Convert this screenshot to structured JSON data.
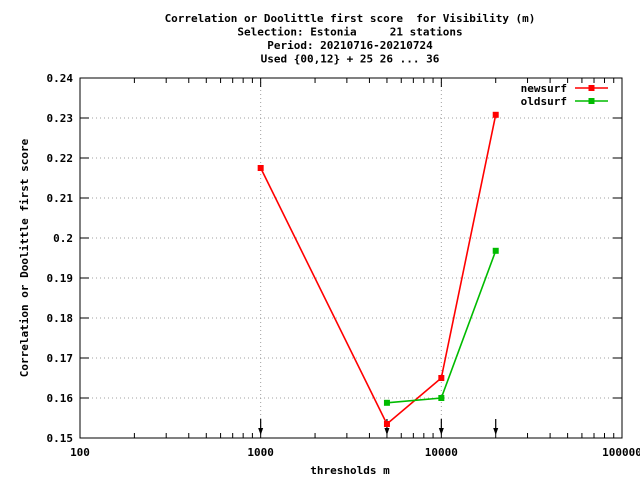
{
  "chart_data": {
    "type": "line",
    "title_lines": [
      "Correlation or Doolittle first score  for Visibility (m)",
      "Selection: Estonia     21 stations",
      "Period: 20210716-20210724",
      "Used {00,12} + 25 26 ... 36"
    ],
    "xlabel": "thresholds m",
    "ylabel": "Correlation or Doolittle first score",
    "x_scale": "log",
    "xlim": [
      100,
      100000
    ],
    "ylim": [
      0.15,
      0.24
    ],
    "x_ticks": [
      100,
      1000,
      10000,
      100000
    ],
    "x_tick_labels": [
      "100",
      "1000",
      "10000",
      "100000"
    ],
    "y_ticks": [
      0.15,
      0.16,
      0.17,
      0.18,
      0.19,
      0.2,
      0.21,
      0.22,
      0.23,
      0.24
    ],
    "y_tick_labels": [
      "0.15",
      "0.16",
      "0.17",
      "0.18",
      "0.19",
      "0.2",
      "0.21",
      "0.22",
      "0.23",
      "0.24"
    ],
    "grid": true,
    "legend_position": "top-right",
    "threshold_markers": [
      1000,
      5000,
      10000,
      20000
    ],
    "series": [
      {
        "name": "newsurf",
        "color": "#ff0000",
        "x": [
          1000,
          5000,
          10000,
          20000
        ],
        "y": [
          0.2175,
          0.1535,
          0.165,
          0.2308
        ]
      },
      {
        "name": "oldsurf",
        "color": "#00bb00",
        "x": [
          5000,
          10000,
          20000
        ],
        "y": [
          0.1588,
          0.16,
          0.1968
        ]
      }
    ]
  }
}
